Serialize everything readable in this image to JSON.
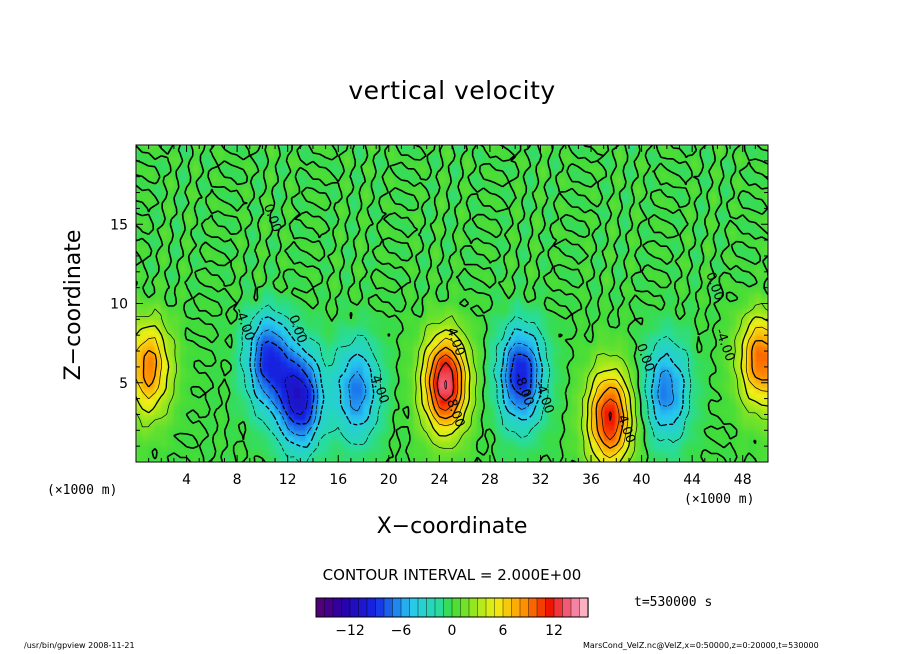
{
  "chart_data": {
    "type": "heatmap",
    "title": "vertical velocity",
    "xlabel": "X−coordinate",
    "ylabel": "Z−coordinate",
    "x_unit_label": "(×1000 m)",
    "xlim": [
      0,
      50
    ],
    "ylim": [
      0,
      20
    ],
    "x_ticks": [
      4,
      8,
      12,
      16,
      20,
      24,
      28,
      32,
      36,
      40,
      44,
      48
    ],
    "y_ticks": [
      5,
      10,
      15
    ],
    "contour_interval_text": "CONTOUR INTERVAL = 2.000E+00",
    "contour_interval": 2.0,
    "colorbar": {
      "min": -16,
      "max": 16,
      "ticks": [
        -12,
        -6,
        0,
        6,
        12
      ]
    },
    "time_label": "t=530000 s",
    "contour_labels": [
      {
        "text": "0.00",
        "x": 10.5,
        "y": 15.3
      },
      {
        "text": "-4.00",
        "x": 8.3,
        "y": 8.6
      },
      {
        "text": "0.00",
        "x": 12.5,
        "y": 8.3
      },
      {
        "text": "4.00",
        "x": 19.0,
        "y": 4.5
      },
      {
        "text": "4.00",
        "x": 25.0,
        "y": 7.5
      },
      {
        "text": "8.00",
        "x": 25.0,
        "y": 3.0
      },
      {
        "text": "-8.00",
        "x": 30.4,
        "y": 4.5
      },
      {
        "text": "-4.00",
        "x": 32.0,
        "y": 4.0
      },
      {
        "text": "0.00",
        "x": 40.0,
        "y": 6.5
      },
      {
        "text": "4.00",
        "x": 38.5,
        "y": 2.0
      },
      {
        "text": "0.00",
        "x": 45.5,
        "y": 11.0
      },
      {
        "text": "-4.00",
        "x": 46.3,
        "y": 7.3
      }
    ],
    "cells": [
      {
        "x": 1.0,
        "z": 6.0,
        "w": 9
      },
      {
        "x": 10.5,
        "z": 6.5,
        "w": -9
      },
      {
        "x": 13.0,
        "z": 4.0,
        "w": -11
      },
      {
        "x": 17.5,
        "z": 4.5,
        "w": -7
      },
      {
        "x": 24.5,
        "z": 5.0,
        "w": 14
      },
      {
        "x": 30.5,
        "z": 5.5,
        "w": -10
      },
      {
        "x": 37.5,
        "z": 2.8,
        "w": 12
      },
      {
        "x": 42.0,
        "z": 4.5,
        "w": -7
      },
      {
        "x": 49.5,
        "z": 6.5,
        "w": 10
      }
    ]
  },
  "footer": {
    "left": "/usr/bin/gpview   2008-11-21",
    "right": "MarsCond_VelZ.nc@VelZ,x=0:50000,z=0:20000,t=530000"
  }
}
